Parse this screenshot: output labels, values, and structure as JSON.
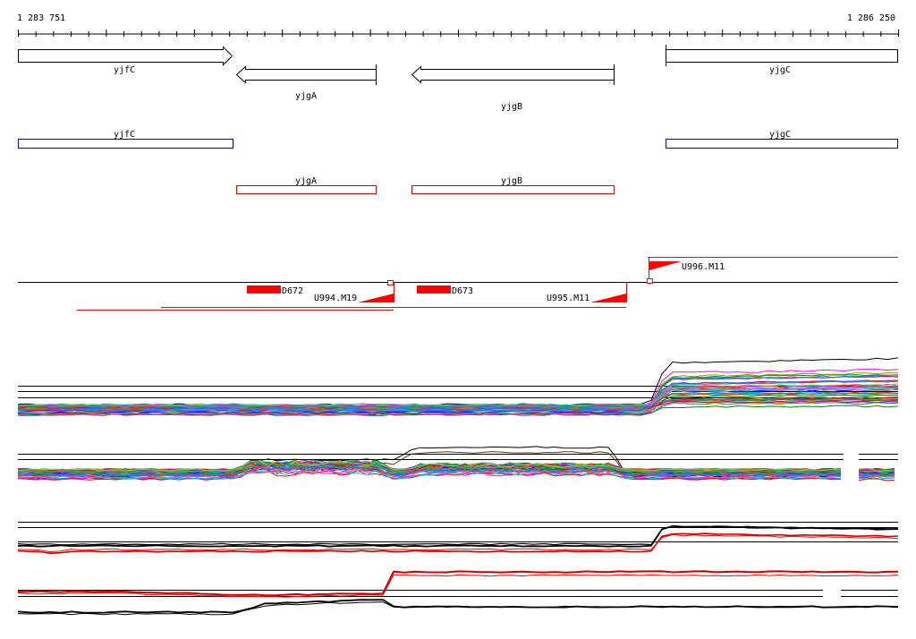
{
  "ruler": {
    "start_label": "1 283 751",
    "end_label": "1 286 250"
  },
  "colors": {
    "gene_outline": "#000000",
    "cds_forward": "#0000cc",
    "cds_reverse": "#e00000",
    "feature": "#ff0000",
    "track_line": "#000000"
  },
  "genes": [
    {
      "name": "yjfC",
      "strand": "+"
    },
    {
      "name": "yjgA",
      "strand": "-"
    },
    {
      "name": "yjgB",
      "strand": "-"
    },
    {
      "name": "yjgC",
      "strand": "+"
    }
  ],
  "cds": [
    {
      "name": "yjfC",
      "strand": "+"
    },
    {
      "name": "yjgA",
      "strand": "-"
    },
    {
      "name": "yjgB",
      "strand": "-"
    },
    {
      "name": "yjgC",
      "strand": "+"
    }
  ],
  "features": {
    "blocks": [
      {
        "label": "D672"
      },
      {
        "label": "D673"
      }
    ],
    "flags": [
      {
        "label": "U994.M19"
      },
      {
        "label": "U995.M11"
      },
      {
        "label": "U996.M11"
      }
    ]
  },
  "tracks": [
    {
      "name": "expression-panel-1",
      "style": "multi-color profiles"
    },
    {
      "name": "expression-panel-2",
      "style": "multi-color profiles"
    },
    {
      "name": "expression-panel-3",
      "style": "red and black profiles"
    },
    {
      "name": "expression-panel-4",
      "style": "red and black profiles"
    }
  ]
}
